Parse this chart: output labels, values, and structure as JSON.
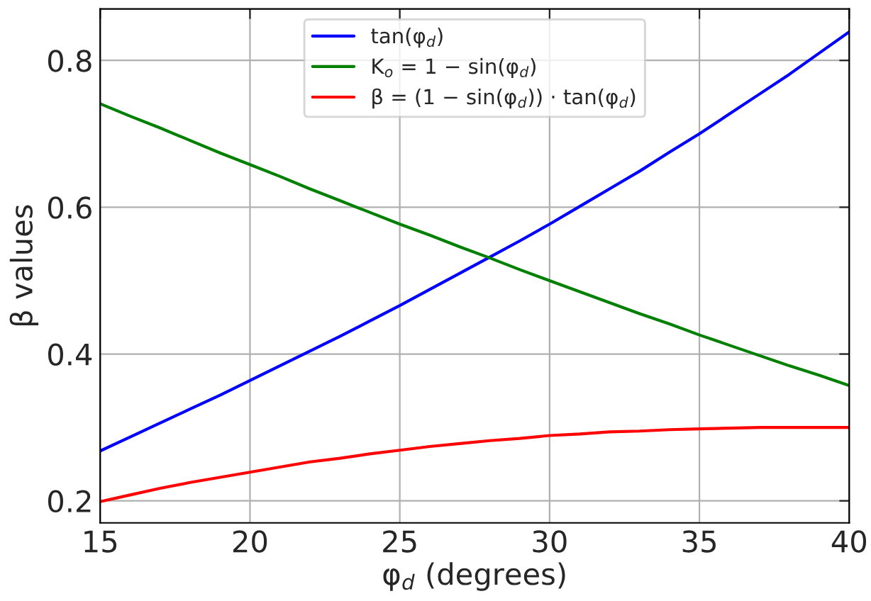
{
  "chart_data": {
    "type": "line",
    "xlabel": "φ$_{d}$ (degrees)",
    "ylabel": "β values",
    "x": [
      15,
      16,
      17,
      18,
      19,
      20,
      21,
      22,
      23,
      24,
      25,
      26,
      27,
      28,
      29,
      30,
      31,
      32,
      33,
      34,
      35,
      36,
      37,
      38,
      39,
      40
    ],
    "series": [
      {
        "name": "tan(φ$_{d}$)",
        "color": "#0000ff",
        "values": [
          0.268,
          0.287,
          0.306,
          0.325,
          0.344,
          0.364,
          0.384,
          0.404,
          0.424,
          0.445,
          0.466,
          0.488,
          0.51,
          0.532,
          0.554,
          0.577,
          0.601,
          0.625,
          0.649,
          0.675,
          0.7,
          0.727,
          0.754,
          0.781,
          0.81,
          0.839
        ]
      },
      {
        "name": "K$_{o}$ = 1 − sin(φ$_{d}$)",
        "color": "#008000",
        "values": [
          0.741,
          0.724,
          0.708,
          0.691,
          0.674,
          0.658,
          0.642,
          0.625,
          0.609,
          0.593,
          0.577,
          0.562,
          0.546,
          0.531,
          0.515,
          0.5,
          0.485,
          0.47,
          0.455,
          0.441,
          0.426,
          0.412,
          0.398,
          0.384,
          0.371,
          0.357
        ]
      },
      {
        "name": "β = (1 − sin(φ$_{d}$)) · tan(φ$_{d}$)",
        "color": "#ff0000",
        "values": [
          0.199,
          0.208,
          0.217,
          0.225,
          0.232,
          0.239,
          0.246,
          0.253,
          0.258,
          0.264,
          0.269,
          0.274,
          0.278,
          0.282,
          0.285,
          0.289,
          0.291,
          0.294,
          0.295,
          0.297,
          0.298,
          0.299,
          0.3,
          0.3,
          0.3,
          0.3
        ]
      }
    ],
    "xlim": [
      15,
      40
    ],
    "ylim": [
      0.17,
      0.87
    ],
    "xticks": [
      15,
      20,
      25,
      30,
      35,
      40
    ],
    "yticks": [
      0.2,
      0.4,
      0.6,
      0.8
    ],
    "grid": true,
    "legend": "top",
    "marker": "none",
    "line_style": "solid"
  }
}
